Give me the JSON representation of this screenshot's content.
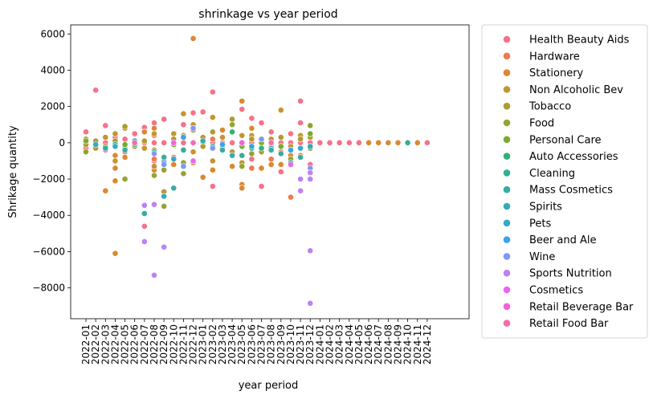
{
  "chart_data": {
    "type": "scatter",
    "title": "shrinkage vs year period",
    "xlabel": "year period",
    "ylabel": "Shrikage quantity",
    "ylim": [
      -9700,
      6500
    ],
    "y_ticks": [
      -8000,
      -6000,
      -4000,
      -2000,
      0,
      2000,
      4000,
      6000
    ],
    "y_tick_labels": [
      "−8000",
      "−6000",
      "−4000",
      "−2000",
      "0",
      "2000",
      "4000",
      "6000"
    ],
    "categories": [
      "2022-01",
      "2022-02",
      "2022-03",
      "2022-04",
      "2022-05",
      "2022-06",
      "2022-07",
      "2022-08",
      "2022-09",
      "2022-10",
      "2022-11",
      "2022-12",
      "2023-01",
      "2023-02",
      "2023-03",
      "2023-04",
      "2023-05",
      "2023-06",
      "2023-07",
      "2023-08",
      "2023-09",
      "2023-10",
      "2023-11",
      "2023-12",
      "2024-01",
      "2024-02",
      "2024-03",
      "2024-04",
      "2024-05",
      "2024-06",
      "2024-07",
      "2024-08",
      "2024-09",
      "2024-10",
      "2024-11",
      "2024-12"
    ],
    "legend_position": "outside right",
    "grid": false,
    "series": [
      {
        "name": "Health  Beauty Aids",
        "color": "#f77189",
        "points": [
          [
            "2022-01",
            600
          ],
          [
            "2022-01",
            0
          ],
          [
            "2022-01",
            -300
          ],
          [
            "2022-02",
            2900
          ],
          [
            "2022-02",
            0
          ],
          [
            "2022-02",
            -200
          ],
          [
            "2022-03",
            950
          ],
          [
            "2022-03",
            0
          ],
          [
            "2022-03",
            -400
          ],
          [
            "2022-04",
            300
          ],
          [
            "2022-04",
            0
          ],
          [
            "2022-05",
            200
          ],
          [
            "2022-05",
            -500
          ],
          [
            "2022-06",
            500
          ],
          [
            "2022-06",
            0
          ],
          [
            "2022-07",
            850
          ],
          [
            "2022-07",
            0
          ],
          [
            "2022-07",
            -4600
          ],
          [
            "2022-08",
            1100
          ],
          [
            "2022-08",
            0
          ],
          [
            "2022-08",
            -1000
          ],
          [
            "2022-09",
            1300
          ],
          [
            "2022-09",
            0
          ],
          [
            "2022-10",
            0
          ],
          [
            "2022-10",
            -800
          ],
          [
            "2022-11",
            1000
          ],
          [
            "2022-11",
            0
          ],
          [
            "2022-12",
            1650
          ],
          [
            "2022-12",
            0
          ],
          [
            "2023-01",
            1700
          ],
          [
            "2023-01",
            0
          ],
          [
            "2023-02",
            2800
          ],
          [
            "2023-02",
            0
          ],
          [
            "2023-02",
            -2400
          ],
          [
            "2023-03",
            0
          ],
          [
            "2023-04",
            600
          ],
          [
            "2023-04",
            0
          ],
          [
            "2023-05",
            1850
          ],
          [
            "2023-05",
            0
          ],
          [
            "2023-06",
            1350
          ],
          [
            "2023-06",
            0
          ],
          [
            "2023-06",
            -900
          ],
          [
            "2023-07",
            1100
          ],
          [
            "2023-07",
            0
          ],
          [
            "2023-07",
            -2400
          ],
          [
            "2023-08",
            600
          ],
          [
            "2023-08",
            0
          ],
          [
            "2023-09",
            0
          ],
          [
            "2023-09",
            -1600
          ],
          [
            "2023-10",
            500
          ],
          [
            "2023-10",
            0
          ],
          [
            "2023-11",
            2300
          ],
          [
            "2023-11",
            1100
          ],
          [
            "2023-11",
            0
          ],
          [
            "2023-12",
            0
          ],
          [
            "2023-12",
            -1200
          ],
          [
            "2024-01",
            0
          ],
          [
            "2024-02",
            0
          ],
          [
            "2024-03",
            0
          ],
          [
            "2024-04",
            0
          ],
          [
            "2024-05",
            0
          ],
          [
            "2024-12",
            0
          ]
        ]
      },
      {
        "name": "Hardware",
        "color": "#f0794e",
        "points": [
          [
            "2022-08",
            -900
          ],
          [
            "2022-08",
            400
          ],
          [
            "2023-02",
            200
          ],
          [
            "2023-06",
            -1400
          ],
          [
            "2023-07",
            -1400
          ],
          [
            "2023-08",
            -900
          ],
          [
            "2023-09",
            -500
          ],
          [
            "2023-10",
            -3000
          ],
          [
            "2023-11",
            -700
          ]
        ]
      },
      {
        "name": "Stationery",
        "color": "#db8831",
        "points": [
          [
            "2022-03",
            -2650
          ],
          [
            "2022-04",
            -2100
          ],
          [
            "2022-04",
            -1400
          ],
          [
            "2022-04",
            -700
          ],
          [
            "2022-04",
            -6100
          ],
          [
            "2022-05",
            -800
          ],
          [
            "2022-07",
            600
          ],
          [
            "2022-08",
            800
          ],
          [
            "2022-08",
            -1500
          ],
          [
            "2022-10",
            -1200
          ],
          [
            "2022-11",
            -1300
          ],
          [
            "2022-12",
            5750
          ],
          [
            "2022-12",
            -1100
          ],
          [
            "2023-01",
            -1900
          ],
          [
            "2023-02",
            -1500
          ],
          [
            "2023-03",
            700
          ],
          [
            "2023-04",
            -1300
          ],
          [
            "2023-05",
            2300
          ],
          [
            "2023-05",
            -2300
          ],
          [
            "2023-05",
            -2500
          ],
          [
            "2023-06",
            800
          ],
          [
            "2023-07",
            -1400
          ],
          [
            "2023-08",
            -1200
          ],
          [
            "2023-09",
            -1200
          ],
          [
            "2023-10",
            -700
          ],
          [
            "2023-11",
            -800
          ],
          [
            "2024-06",
            0
          ],
          [
            "2024-07",
            0
          ],
          [
            "2024-08",
            0
          ],
          [
            "2024-09",
            0
          ],
          [
            "2024-11",
            0
          ]
        ]
      },
      {
        "name": "Non Alcoholic Bev",
        "color": "#c39532",
        "points": [
          [
            "2022-01",
            200
          ],
          [
            "2022-02",
            -300
          ],
          [
            "2022-03",
            300
          ],
          [
            "2022-04",
            500
          ],
          [
            "2022-04",
            -1000
          ],
          [
            "2022-05",
            800
          ],
          [
            "2022-06",
            -200
          ],
          [
            "2022-07",
            -300
          ],
          [
            "2022-08",
            500
          ],
          [
            "2022-08",
            -1300
          ],
          [
            "2022-09",
            -2700
          ],
          [
            "2022-10",
            500
          ],
          [
            "2022-11",
            1600
          ],
          [
            "2022-11",
            -400
          ],
          [
            "2022-12",
            1000
          ],
          [
            "2022-12",
            -500
          ],
          [
            "2023-01",
            300
          ],
          [
            "2023-02",
            1400
          ],
          [
            "2023-02",
            -1000
          ],
          [
            "2023-03",
            300
          ],
          [
            "2023-04",
            -500
          ],
          [
            "2023-05",
            400
          ],
          [
            "2023-05",
            -1100
          ],
          [
            "2023-06",
            400
          ],
          [
            "2023-07",
            -300
          ],
          [
            "2023-08",
            200
          ],
          [
            "2023-09",
            1800
          ],
          [
            "2023-10",
            -200
          ],
          [
            "2023-11",
            400
          ],
          [
            "2024-10",
            0
          ]
        ]
      },
      {
        "name": "Tobacco",
        "color": "#ad9c31",
        "points": [
          [
            "2022-01",
            -100
          ],
          [
            "2022-02",
            100
          ],
          [
            "2022-03",
            -200
          ],
          [
            "2022-04",
            100
          ],
          [
            "2022-05",
            900
          ],
          [
            "2022-05",
            -300
          ],
          [
            "2022-07",
            100
          ],
          [
            "2022-08",
            -400
          ],
          [
            "2022-09",
            -1000
          ],
          [
            "2022-10",
            200
          ],
          [
            "2022-11",
            400
          ],
          [
            "2022-12",
            700
          ],
          [
            "2023-01",
            -200
          ],
          [
            "2023-02",
            600
          ],
          [
            "2023-03",
            -300
          ],
          [
            "2023-04",
            1300
          ],
          [
            "2023-05",
            -200
          ],
          [
            "2023-06",
            200
          ],
          [
            "2023-07",
            -500
          ],
          [
            "2023-08",
            -100
          ],
          [
            "2023-09",
            300
          ],
          [
            "2023-10",
            -400
          ],
          [
            "2023-11",
            200
          ],
          [
            "2023-12",
            300
          ]
        ]
      },
      {
        "name": "Food",
        "color": "#96a331",
        "points": [
          [
            "2022-01",
            -500
          ],
          [
            "2022-05",
            -2000
          ],
          [
            "2022-08",
            -1800
          ],
          [
            "2022-09",
            -3500
          ],
          [
            "2022-09",
            -1500
          ],
          [
            "2022-11",
            -1700
          ],
          [
            "2022-11",
            -1100
          ],
          [
            "2023-04",
            1000
          ],
          [
            "2023-05",
            -1300
          ],
          [
            "2023-06",
            -600
          ],
          [
            "2023-10",
            -900
          ],
          [
            "2023-12",
            950
          ],
          [
            "2023-12",
            -300
          ]
        ]
      },
      {
        "name": "Personal Care",
        "color": "#7aab31",
        "points": [
          [
            "2022-01",
            100
          ],
          [
            "2022-05",
            -100
          ],
          [
            "2022-10",
            -100
          ],
          [
            "2023-03",
            -100
          ],
          [
            "2023-05",
            -200
          ],
          [
            "2023-07",
            0
          ],
          [
            "2023-09",
            -200
          ],
          [
            "2023-12",
            500
          ]
        ]
      },
      {
        "name": "Auto Accessories",
        "color": "#33b07a",
        "points": [
          [
            "2022-06",
            -100
          ],
          [
            "2023-04",
            600
          ],
          [
            "2023-07",
            -300
          ]
        ]
      },
      {
        "name": "Cleaning",
        "color": "#34ae91",
        "points": [
          [
            "2022-04",
            -100
          ],
          [
            "2022-08",
            -500
          ],
          [
            "2022-11",
            -400
          ],
          [
            "2023-02",
            -200
          ],
          [
            "2023-05",
            -700
          ],
          [
            "2023-08",
            -300
          ],
          [
            "2023-11",
            -800
          ],
          [
            "2024-10",
            0
          ]
        ]
      },
      {
        "name": "Mass Cosmetics",
        "color": "#35aca4",
        "points": [
          [
            "2022-03",
            -300
          ],
          [
            "2022-05",
            -400
          ],
          [
            "2022-07",
            -3900
          ],
          [
            "2022-09",
            -800
          ],
          [
            "2022-10",
            -2500
          ],
          [
            "2023-03",
            -400
          ],
          [
            "2023-06",
            -300
          ],
          [
            "2023-09",
            -600
          ],
          [
            "2023-10",
            -1100
          ]
        ]
      },
      {
        "name": "Spirits",
        "color": "#36abb5",
        "points": [
          [
            "2022-02",
            -100
          ],
          [
            "2022-06",
            100
          ],
          [
            "2022-09",
            -2950
          ],
          [
            "2023-01",
            100
          ],
          [
            "2023-04",
            -700
          ],
          [
            "2023-08",
            -400
          ],
          [
            "2023-12",
            -200
          ]
        ]
      },
      {
        "name": "Pets",
        "color": "#38a9c5",
        "points": [
          [
            "2022-04",
            -200
          ],
          [
            "2022-10",
            -900
          ],
          [
            "2023-06",
            -200
          ],
          [
            "2023-11",
            -300
          ]
        ]
      },
      {
        "name": "Beer and Ale",
        "color": "#3ba3ec",
        "points": [
          [
            "2022-09",
            -1100
          ],
          [
            "2022-11",
            300
          ],
          [
            "2023-03",
            -100
          ],
          [
            "2023-10",
            -400
          ]
        ]
      },
      {
        "name": "Wine",
        "color": "#8197f4",
        "points": [
          [
            "2022-08",
            -600
          ],
          [
            "2022-09",
            -1200
          ],
          [
            "2022-11",
            -1300
          ],
          [
            "2022-12",
            800
          ],
          [
            "2023-02",
            -300
          ],
          [
            "2023-07",
            200
          ],
          [
            "2023-12",
            -1400
          ]
        ]
      },
      {
        "name": "Sports Nutrition",
        "color": "#bb83f4",
        "points": [
          [
            "2022-07",
            -3450
          ],
          [
            "2022-07",
            -5450
          ],
          [
            "2022-08",
            -3400
          ],
          [
            "2022-08",
            -7300
          ],
          [
            "2022-09",
            -5750
          ],
          [
            "2023-11",
            -2650
          ],
          [
            "2023-11",
            -2000
          ],
          [
            "2023-12",
            -1650
          ],
          [
            "2023-12",
            -2000
          ],
          [
            "2023-12",
            -5950
          ],
          [
            "2023-12",
            -8850
          ]
        ]
      },
      {
        "name": "Cosmetics",
        "color": "#e866f4",
        "points": [
          [
            "2022-12",
            -1000
          ],
          [
            "2023-10",
            -1200
          ]
        ]
      },
      {
        "name": "Retail Beverage Bar",
        "color": "#f461dd",
        "points": [
          [
            "2022-10",
            0
          ],
          [
            "2023-05",
            0
          ]
        ]
      },
      {
        "name": "Retail Food Bar",
        "color": "#f56cac",
        "points": [
          [
            "2022-06",
            0
          ],
          [
            "2022-12",
            0
          ],
          [
            "2023-08",
            0
          ]
        ]
      }
    ]
  }
}
